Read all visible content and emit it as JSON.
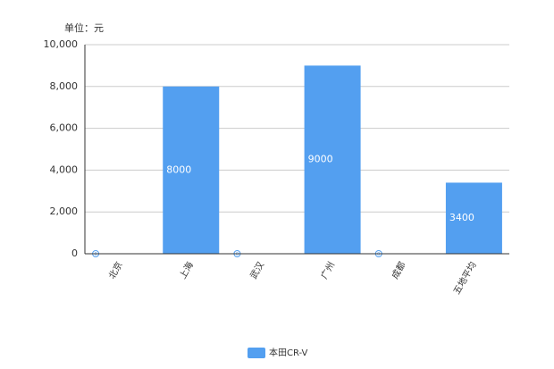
{
  "chart_data": {
    "type": "bar",
    "unit_label": "单位：元",
    "categories": [
      "北京",
      "上海",
      "武汉",
      "广州",
      "成都",
      "五地平均"
    ],
    "series": [
      {
        "name": "本田CR-V",
        "color": "#539ff0",
        "values": [
          0,
          8000,
          0,
          9000,
          0,
          3400
        ]
      }
    ],
    "ylim": [
      0,
      10000
    ],
    "yticks": [
      0,
      {
        "value": 2000,
        "label": "2,000"
      },
      {
        "value": 4000,
        "label": "4,000"
      },
      {
        "value": 6000,
        "label": "6,000"
      },
      {
        "value": 8000,
        "label": "8,000"
      },
      {
        "value": 10000,
        "label": "10,000"
      }
    ],
    "grid": true,
    "legend": "bottom"
  }
}
